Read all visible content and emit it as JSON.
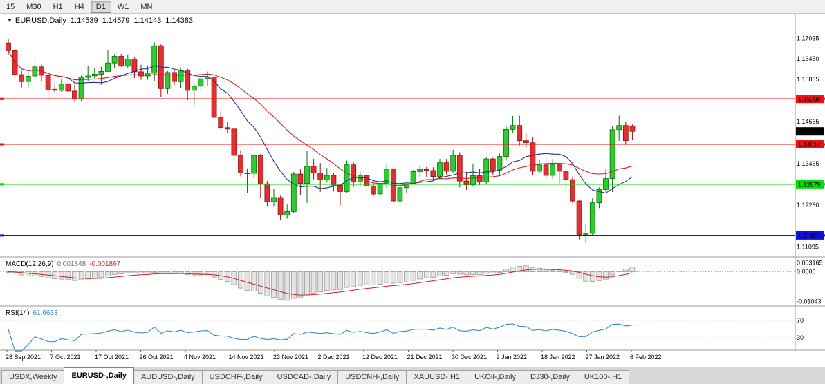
{
  "toolbar": {
    "timeframes": [
      {
        "label": "15",
        "active": false
      },
      {
        "label": "M30",
        "active": false
      },
      {
        "label": "H1",
        "active": false
      },
      {
        "label": "H4",
        "active": false
      },
      {
        "label": "D1",
        "active": true
      },
      {
        "label": "W1",
        "active": false
      },
      {
        "label": "MN",
        "active": false
      }
    ]
  },
  "chart": {
    "symbol_label": "EURUSD,Daily",
    "open": "1.14539",
    "high": "1.14579",
    "low": "1.14143",
    "close": "1.14383"
  },
  "price_scale": {
    "ticks": [
      {
        "label": "1.17035",
        "value": 1.17035
      },
      {
        "label": "1.16450",
        "value": 1.1645
      },
      {
        "label": "1.15865",
        "value": 1.15865
      },
      {
        "label": "1.14665",
        "value": 1.14665
      },
      {
        "label": "1.13465",
        "value": 1.13465
      },
      {
        "label": "1.12280",
        "value": 1.1228
      },
      {
        "label": "1.11095",
        "value": 1.11095
      }
    ],
    "current_label": {
      "label": "1.14383",
      "value": 1.14383,
      "bg": "#000000",
      "fg": "#ffffff"
    }
  },
  "indicators": {
    "macd": {
      "name": "MACD(12,26,9)",
      "main_value": "0.001848",
      "signal_value": "-0.001867",
      "signal_color": "#d02020",
      "histogram_fill": "#e4e4e4",
      "histogram_stroke": "#9a9a9a",
      "scale": [
        {
          "label": "0.003165",
          "value": 0.003165
        },
        {
          "label": "0.0000",
          "value": 0
        },
        {
          "label": "-0.01043",
          "value": -0.01043
        }
      ]
    },
    "rsi": {
      "name": "RSI(14)",
      "value": "61.6633",
      "color": "#3a87c8",
      "levels": [
        {
          "label": "70",
          "value": 70
        },
        {
          "label": "30",
          "value": 30
        }
      ]
    }
  },
  "chart_data": {
    "type": "candlestick",
    "symbol": "EURUSD",
    "timeframe": "Daily",
    "price_range": [
      1.1085,
      1.1765
    ],
    "macd_range": [
      -0.0115,
      0.004
    ],
    "rsi_range": [
      5,
      95
    ],
    "up_color": "#2ecc2e",
    "down_color": "#e03030",
    "x_labels": [
      "28 Sep 2021",
      "7 Oct 2021",
      "17 Oct 2021",
      "26 Oct 2021",
      "4 Nov 2021",
      "14 Nov 2021",
      "23 Nov 2021",
      "2 Dec 2021",
      "12 Dec 2021",
      "21 Dec 2021",
      "30 Dec 2021",
      "9 Jan 2022",
      "18 Jan 2022",
      "27 Jan 2022",
      "6 Feb 2022"
    ],
    "moving_averages": [
      {
        "name": "ma-fast",
        "period": 10,
        "color": "#20309a"
      },
      {
        "name": "ma-slow",
        "period": 21,
        "color": "#d02020"
      }
    ],
    "hlines": [
      {
        "name": "resistance-line-upper",
        "price": 1.15308,
        "label": "1.15308",
        "color": "#ee1111",
        "fg": "#ffffff",
        "width": 1.4
      },
      {
        "name": "resistance-line-lower",
        "price": 1.14014,
        "label": "1.14014",
        "color": "#ee1111",
        "fg": "#ffffff",
        "width": 1.4
      },
      {
        "name": "support-line-green",
        "price": 1.12879,
        "label": "1.12879",
        "color": "#00dd00",
        "fg": "#000000",
        "width": 1.6
      },
      {
        "name": "support-line-blue",
        "price": 1.11422,
        "label": "1.11422",
        "color": "#1111dd",
        "fg": "#ffffff",
        "width": 2
      }
    ],
    "candles": [
      [
        1.169,
        1.1702,
        1.1655,
        1.1668
      ],
      [
        1.1668,
        1.1674,
        1.1589,
        1.16
      ],
      [
        1.16,
        1.1611,
        1.1563,
        1.158
      ],
      [
        1.158,
        1.1608,
        1.1562,
        1.1595
      ],
      [
        1.1596,
        1.164,
        1.1588,
        1.1622
      ],
      [
        1.1622,
        1.1629,
        1.1581,
        1.1598
      ],
      [
        1.1598,
        1.1602,
        1.1529,
        1.1558
      ],
      [
        1.1558,
        1.1572,
        1.1546,
        1.1555
      ],
      [
        1.1555,
        1.1586,
        1.1551,
        1.1573
      ],
      [
        1.1573,
        1.1586,
        1.1549,
        1.1553
      ],
      [
        1.1553,
        1.1572,
        1.1524,
        1.153
      ],
      [
        1.153,
        1.1597,
        1.1525,
        1.1592
      ],
      [
        1.1592,
        1.1624,
        1.1582,
        1.1596
      ],
      [
        1.1596,
        1.1618,
        1.1588,
        1.1601
      ],
      [
        1.1601,
        1.1622,
        1.1571,
        1.1609
      ],
      [
        1.1609,
        1.167,
        1.1609,
        1.1633
      ],
      [
        1.1633,
        1.1658,
        1.1617,
        1.1652
      ],
      [
        1.1652,
        1.1659,
        1.1622,
        1.1624
      ],
      [
        1.1624,
        1.1656,
        1.162,
        1.1644
      ],
      [
        1.1644,
        1.165,
        1.159,
        1.1608
      ],
      [
        1.1608,
        1.1628,
        1.1585,
        1.1596
      ],
      [
        1.1596,
        1.1626,
        1.1585,
        1.1604
      ],
      [
        1.1604,
        1.1692,
        1.1582,
        1.1682
      ],
      [
        1.1682,
        1.1686,
        1.1535,
        1.156
      ],
      [
        1.156,
        1.161,
        1.1545,
        1.1606
      ],
      [
        1.1606,
        1.1614,
        1.157,
        1.158
      ],
      [
        1.158,
        1.1617,
        1.1562,
        1.1612
      ],
      [
        1.1612,
        1.1617,
        1.1527,
        1.1555
      ],
      [
        1.1555,
        1.1574,
        1.1513,
        1.1567
      ],
      [
        1.1567,
        1.1594,
        1.1552,
        1.1588
      ],
      [
        1.1588,
        1.1609,
        1.1567,
        1.1593
      ],
      [
        1.1593,
        1.1597,
        1.1475,
        1.1478
      ],
      [
        1.1478,
        1.1496,
        1.1443,
        1.1449
      ],
      [
        1.1449,
        1.1465,
        1.1433,
        1.1445
      ],
      [
        1.1445,
        1.145,
        1.1357,
        1.137
      ],
      [
        1.137,
        1.1385,
        1.131,
        1.132
      ],
      [
        1.132,
        1.1333,
        1.1263,
        1.1319
      ],
      [
        1.1319,
        1.1374,
        1.1305,
        1.137
      ],
      [
        1.137,
        1.1374,
        1.125,
        1.1289
      ],
      [
        1.1289,
        1.1297,
        1.1226,
        1.1238
      ],
      [
        1.1238,
        1.1275,
        1.1226,
        1.125
      ],
      [
        1.125,
        1.1255,
        1.1186,
        1.12
      ],
      [
        1.12,
        1.123,
        1.119,
        1.121
      ],
      [
        1.121,
        1.1323,
        1.1206,
        1.1317
      ],
      [
        1.1317,
        1.133,
        1.1258,
        1.129
      ],
      [
        1.129,
        1.1383,
        1.1235,
        1.1339
      ],
      [
        1.1339,
        1.136,
        1.1302,
        1.132
      ],
      [
        1.132,
        1.1348,
        1.1266,
        1.13
      ],
      [
        1.13,
        1.1334,
        1.1293,
        1.1313
      ],
      [
        1.1313,
        1.1319,
        1.1267,
        1.1285
      ],
      [
        1.1285,
        1.1288,
        1.1228,
        1.1267
      ],
      [
        1.1267,
        1.1355,
        1.1264,
        1.1343
      ],
      [
        1.1343,
        1.135,
        1.128,
        1.1295
      ],
      [
        1.1295,
        1.1324,
        1.1283,
        1.1313
      ],
      [
        1.1313,
        1.132,
        1.126,
        1.1283
      ],
      [
        1.1283,
        1.129,
        1.1254,
        1.126
      ],
      [
        1.126,
        1.1297,
        1.1249,
        1.1288
      ],
      [
        1.1288,
        1.1344,
        1.1277,
        1.1331
      ],
      [
        1.1331,
        1.1336,
        1.1236,
        1.124
      ],
      [
        1.124,
        1.1282,
        1.1234,
        1.1278
      ],
      [
        1.1278,
        1.1292,
        1.1262,
        1.1288
      ],
      [
        1.1288,
        1.1328,
        1.1287,
        1.1324
      ],
      [
        1.1324,
        1.1342,
        1.1309,
        1.133
      ],
      [
        1.133,
        1.1337,
        1.1308,
        1.1327
      ],
      [
        1.1327,
        1.1336,
        1.1302,
        1.131
      ],
      [
        1.131,
        1.136,
        1.1304,
        1.1349
      ],
      [
        1.1349,
        1.136,
        1.1316,
        1.1325
      ],
      [
        1.1325,
        1.1386,
        1.1321,
        1.137
      ],
      [
        1.137,
        1.1379,
        1.1279,
        1.1297
      ],
      [
        1.1297,
        1.1323,
        1.1272,
        1.1286
      ],
      [
        1.1286,
        1.1347,
        1.1282,
        1.1312
      ],
      [
        1.1312,
        1.1332,
        1.1285,
        1.1295
      ],
      [
        1.1295,
        1.1365,
        1.1288,
        1.136
      ],
      [
        1.136,
        1.1363,
        1.1313,
        1.1328
      ],
      [
        1.1328,
        1.1375,
        1.1314,
        1.1367
      ],
      [
        1.1367,
        1.1453,
        1.1355,
        1.1444
      ],
      [
        1.1444,
        1.1482,
        1.1435,
        1.1455
      ],
      [
        1.1455,
        1.1483,
        1.1398,
        1.1412
      ],
      [
        1.1412,
        1.1435,
        1.139,
        1.1406
      ],
      [
        1.1406,
        1.1422,
        1.1315,
        1.1325
      ],
      [
        1.1325,
        1.1358,
        1.1318,
        1.1343
      ],
      [
        1.1343,
        1.137,
        1.13,
        1.1313
      ],
      [
        1.1313,
        1.136,
        1.1303,
        1.1343
      ],
      [
        1.1343,
        1.1349,
        1.129,
        1.1325
      ],
      [
        1.1325,
        1.133,
        1.1263,
        1.1301
      ],
      [
        1.1301,
        1.131,
        1.1235,
        1.124
      ],
      [
        1.124,
        1.1243,
        1.1131,
        1.1145
      ],
      [
        1.1145,
        1.1174,
        1.1121,
        1.1148
      ],
      [
        1.1148,
        1.1248,
        1.1141,
        1.1235
      ],
      [
        1.1235,
        1.1279,
        1.122,
        1.1273
      ],
      [
        1.1273,
        1.133,
        1.1266,
        1.1304
      ],
      [
        1.1304,
        1.1452,
        1.1266,
        1.1443
      ],
      [
        1.1443,
        1.1483,
        1.1411,
        1.1455
      ],
      [
        1.1455,
        1.1465,
        1.14,
        1.1412
      ],
      [
        1.14539,
        1.14579,
        1.14143,
        1.14383
      ]
    ]
  },
  "tabs": [
    {
      "label": "USDX,Weekly",
      "active": false
    },
    {
      "label": "EURUSD-,Daily",
      "active": true
    },
    {
      "label": "AUDUSD-,Daily",
      "active": false
    },
    {
      "label": "USDCHF-,Daily",
      "active": false
    },
    {
      "label": "USDCAD-,Daily",
      "active": false
    },
    {
      "label": "USDCNH-,Daily",
      "active": false
    },
    {
      "label": "XAUUSD-,H1",
      "active": false
    },
    {
      "label": "UKOil-,Daily",
      "active": false
    },
    {
      "label": "DJ30-,Daily",
      "active": false
    },
    {
      "label": "UK100-,H1",
      "active": false
    }
  ]
}
